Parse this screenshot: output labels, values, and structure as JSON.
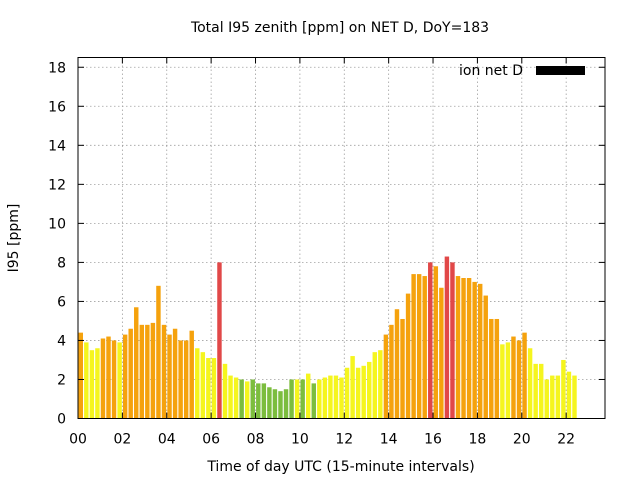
{
  "chart_data": {
    "type": "bar",
    "title": "Total I95 zenith [ppm] on NET D, DoY=183",
    "xlabel": "Time of day UTC (15-minute intervals)",
    "ylabel": "I95 [ppm]",
    "x_ticks": [
      "00",
      "02",
      "04",
      "06",
      "08",
      "10",
      "12",
      "14",
      "16",
      "18",
      "20",
      "22"
    ],
    "y_ticks": [
      "0",
      "2",
      "4",
      "6",
      "8",
      "10",
      "12",
      "14",
      "16",
      "18"
    ],
    "xlim": [
      0,
      23.75
    ],
    "ylim": [
      0,
      18.5
    ],
    "grid": true,
    "legend": {
      "label": "ion net D",
      "position": "top-right",
      "color": "#000000"
    },
    "interval_hours": 0.25,
    "colors": {
      "green": "#7cbd3e",
      "yellow": "#f5f51e",
      "orange": "#f5a20d",
      "red": "#e14848"
    },
    "values": [
      4.4,
      3.9,
      3.5,
      3.6,
      4.1,
      4.2,
      4.0,
      3.9,
      4.3,
      4.6,
      5.7,
      4.8,
      4.8,
      4.9,
      6.8,
      4.8,
      4.3,
      4.6,
      4.0,
      4.0,
      4.5,
      3.6,
      3.4,
      3.1,
      3.1,
      8.0,
      2.8,
      2.2,
      2.1,
      2.0,
      1.9,
      2.0,
      1.8,
      1.8,
      1.6,
      1.5,
      1.4,
      1.5,
      2.0,
      2.0,
      2.0,
      2.3,
      1.8,
      2.0,
      2.1,
      2.2,
      2.2,
      2.1,
      2.6,
      3.2,
      2.6,
      2.7,
      2.9,
      3.4,
      3.5,
      4.3,
      4.8,
      5.6,
      5.1,
      6.4,
      7.4,
      7.4,
      7.3,
      8.0,
      7.8,
      6.7,
      8.3,
      8.0,
      7.3,
      7.2,
      7.2,
      7.0,
      6.9,
      6.3,
      5.1,
      5.1,
      3.8,
      3.9,
      4.2,
      4.0,
      4.4,
      3.6,
      2.8,
      2.8,
      2.0,
      2.2,
      2.2,
      3.0,
      2.4,
      2.2
    ],
    "levels": [
      "orange",
      "yellow",
      "yellow",
      "yellow",
      "orange",
      "orange",
      "orange",
      "yellow",
      "orange",
      "orange",
      "orange",
      "orange",
      "orange",
      "orange",
      "orange",
      "orange",
      "orange",
      "orange",
      "orange",
      "orange",
      "orange",
      "yellow",
      "yellow",
      "yellow",
      "yellow",
      "red",
      "yellow",
      "yellow",
      "yellow",
      "green",
      "yellow",
      "green",
      "green",
      "green",
      "green",
      "green",
      "green",
      "green",
      "green",
      "yellow",
      "green",
      "yellow",
      "green",
      "yellow",
      "yellow",
      "yellow",
      "yellow",
      "yellow",
      "yellow",
      "yellow",
      "yellow",
      "yellow",
      "yellow",
      "yellow",
      "yellow",
      "orange",
      "orange",
      "orange",
      "orange",
      "orange",
      "orange",
      "orange",
      "orange",
      "red",
      "orange",
      "orange",
      "red",
      "red",
      "orange",
      "orange",
      "orange",
      "orange",
      "orange",
      "orange",
      "orange",
      "orange",
      "yellow",
      "yellow",
      "orange",
      "orange",
      "orange",
      "yellow",
      "yellow",
      "yellow",
      "yellow",
      "yellow",
      "yellow",
      "yellow",
      "yellow",
      "yellow"
    ]
  }
}
